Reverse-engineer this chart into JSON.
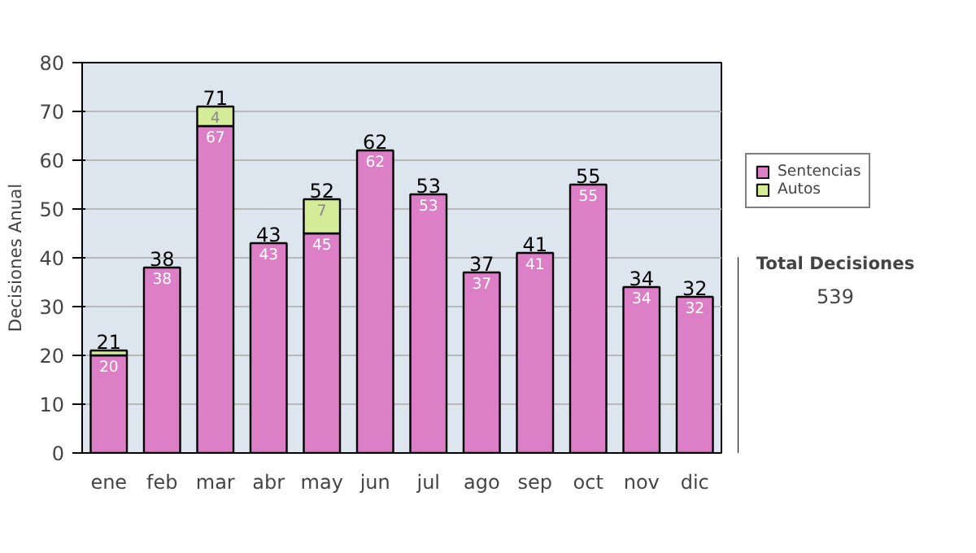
{
  "chart_data": {
    "type": "bar",
    "stacked": true,
    "ylabel": "Decisiones Anual",
    "categories": [
      "ene",
      "feb",
      "mar",
      "abr",
      "may",
      "jun",
      "jul",
      "ago",
      "sep",
      "oct",
      "nov",
      "dic"
    ],
    "series": [
      {
        "name": "Sentencias",
        "color": "#dd7fc6",
        "values": [
          20,
          38,
          67,
          43,
          45,
          62,
          53,
          37,
          41,
          55,
          34,
          32
        ],
        "value_labels": [
          "20",
          "38",
          "67",
          "43",
          "45",
          "62",
          "53",
          "37",
          "41",
          "55",
          "34",
          "32"
        ]
      },
      {
        "name": "Autos",
        "color": "#d4ec98",
        "values": [
          1,
          null,
          4,
          null,
          7,
          null,
          null,
          null,
          null,
          null,
          null,
          null
        ],
        "value_labels": [
          null,
          null,
          "4",
          null,
          "7",
          null,
          null,
          null,
          null,
          null,
          null,
          null
        ]
      }
    ],
    "totals": [
      "21",
      "38",
      "71",
      "43",
      "52",
      "62",
      "53",
      "37",
      "41",
      "55",
      "34",
      "32"
    ],
    "ylim": [
      0,
      80
    ],
    "yticks": [
      0,
      10,
      20,
      30,
      40,
      50,
      60,
      70,
      80
    ],
    "grid": "y",
    "legend": "right",
    "annotations": [
      "Total Decisiones",
      "539"
    ]
  }
}
